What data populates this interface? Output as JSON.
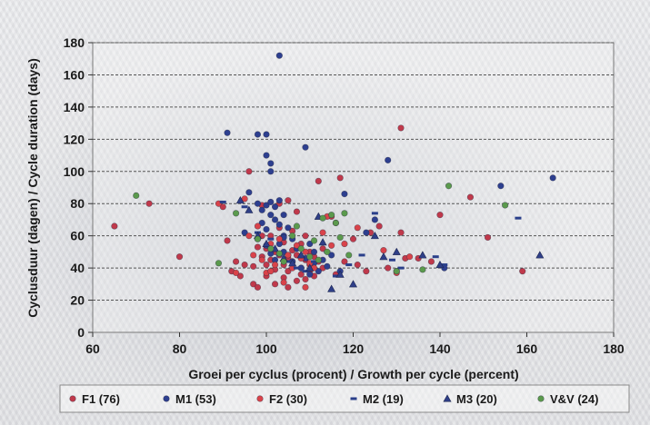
{
  "chart_data": {
    "type": "scatter",
    "xlabel": "Groei per cyclus (procent)  /  Growth per cycle (percent)",
    "ylabel": "Cyclusduur (dagen)  /  Cycle duration (days)",
    "xlim": [
      60,
      180
    ],
    "ylim": [
      0,
      180
    ],
    "xticks": [
      "60",
      "80",
      "100",
      "120",
      "140",
      "160",
      "180"
    ],
    "yticks": [
      "0",
      "20",
      "40",
      "60",
      "80",
      "100",
      "120",
      "140",
      "160",
      "180"
    ],
    "grid": "horizontal dashed",
    "legend_placement": "bottom",
    "series": [
      {
        "name": "F1 (76)",
        "marker": "circle",
        "color": "#c0394b",
        "points": [
          [
            65,
            66
          ],
          [
            73,
            80
          ],
          [
            80,
            47
          ],
          [
            90,
            78
          ],
          [
            91,
            57
          ],
          [
            92,
            38
          ],
          [
            93,
            44
          ],
          [
            94,
            35
          ],
          [
            95,
            42
          ],
          [
            96,
            100
          ],
          [
            97,
            30
          ],
          [
            97,
            41
          ],
          [
            98,
            53
          ],
          [
            98,
            28
          ],
          [
            99,
            47
          ],
          [
            99,
            60
          ],
          [
            99,
            79
          ],
          [
            100,
            35
          ],
          [
            100,
            42
          ],
          [
            100,
            52
          ],
          [
            101,
            45
          ],
          [
            101,
            60
          ],
          [
            102,
            30
          ],
          [
            102,
            50
          ],
          [
            102,
            39
          ],
          [
            103,
            48
          ],
          [
            103,
            65
          ],
          [
            103,
            80
          ],
          [
            104,
            34
          ],
          [
            104,
            42
          ],
          [
            104,
            56
          ],
          [
            105,
            38
          ],
          [
            105,
            46
          ],
          [
            105,
            28
          ],
          [
            106,
            51
          ],
          [
            106,
            44
          ],
          [
            106,
            63
          ],
          [
            107,
            32
          ],
          [
            107,
            48
          ],
          [
            107,
            75
          ],
          [
            108,
            40
          ],
          [
            108,
            55
          ],
          [
            108,
            36
          ],
          [
            109,
            45
          ],
          [
            109,
            33
          ],
          [
            109,
            60
          ],
          [
            110,
            50
          ],
          [
            110,
            38
          ],
          [
            110,
            42
          ],
          [
            111,
            47
          ],
          [
            111,
            35
          ],
          [
            112,
            44
          ],
          [
            112,
            94
          ],
          [
            113,
            52
          ],
          [
            113,
            40
          ],
          [
            115,
            72
          ],
          [
            116,
            36
          ],
          [
            117,
            96
          ],
          [
            118,
            44
          ],
          [
            120,
            58
          ],
          [
            121,
            42
          ],
          [
            123,
            38
          ],
          [
            124,
            62
          ],
          [
            126,
            66
          ],
          [
            128,
            40
          ],
          [
            130,
            38
          ],
          [
            131,
            127
          ],
          [
            131,
            62
          ],
          [
            132,
            46
          ],
          [
            135,
            46
          ],
          [
            138,
            44
          ],
          [
            140,
            73
          ],
          [
            147,
            84
          ],
          [
            151,
            59
          ],
          [
            159,
            38
          ],
          [
            105,
            82
          ]
        ]
      },
      {
        "name": "M1 (53)",
        "marker": "circle",
        "color": "#2d3f8f",
        "points": [
          [
            91,
            124
          ],
          [
            98,
            123
          ],
          [
            100,
            123
          ],
          [
            100,
            110
          ],
          [
            101,
            105
          ],
          [
            101,
            100
          ],
          [
            103,
            172
          ],
          [
            109,
            115
          ],
          [
            96,
            87
          ],
          [
            98,
            80
          ],
          [
            99,
            76
          ],
          [
            100,
            79
          ],
          [
            101,
            81
          ],
          [
            101,
            73
          ],
          [
            102,
            70
          ],
          [
            102,
            78
          ],
          [
            103,
            67
          ],
          [
            103,
            82
          ],
          [
            104,
            73
          ],
          [
            104,
            60
          ],
          [
            100,
            54
          ],
          [
            101,
            49
          ],
          [
            102,
            45
          ],
          [
            103,
            55
          ],
          [
            104,
            50
          ],
          [
            105,
            48
          ],
          [
            106,
            44
          ],
          [
            107,
            52
          ],
          [
            108,
            40
          ],
          [
            109,
            46
          ],
          [
            110,
            36
          ],
          [
            111,
            43
          ],
          [
            112,
            38
          ],
          [
            113,
            45
          ],
          [
            114,
            41
          ],
          [
            106,
            58
          ],
          [
            105,
            65
          ],
          [
            104,
            59
          ],
          [
            100,
            64
          ],
          [
            99,
            68
          ],
          [
            98,
            58
          ],
          [
            110,
            55
          ],
          [
            111,
            50
          ],
          [
            115,
            48
          ],
          [
            117,
            38
          ],
          [
            118,
            86
          ],
          [
            123,
            62
          ],
          [
            125,
            70
          ],
          [
            128,
            107
          ],
          [
            141,
            40
          ],
          [
            154,
            91
          ],
          [
            166,
            96
          ],
          [
            95,
            62
          ]
        ]
      },
      {
        "name": "F2 (30)",
        "marker": "circle",
        "color": "#d9434a",
        "points": [
          [
            89,
            80
          ],
          [
            93,
            37
          ],
          [
            95,
            83
          ],
          [
            96,
            60
          ],
          [
            97,
            48
          ],
          [
            98,
            66
          ],
          [
            99,
            45
          ],
          [
            100,
            37
          ],
          [
            101,
            55
          ],
          [
            102,
            42
          ],
          [
            103,
            58
          ],
          [
            104,
            31
          ],
          [
            105,
            48
          ],
          [
            106,
            40
          ],
          [
            107,
            54
          ],
          [
            108,
            46
          ],
          [
            109,
            50
          ],
          [
            110,
            43
          ],
          [
            111,
            40
          ],
          [
            113,
            62
          ],
          [
            114,
            72
          ],
          [
            115,
            54
          ],
          [
            116,
            68
          ],
          [
            118,
            55
          ],
          [
            121,
            65
          ],
          [
            127,
            51
          ],
          [
            130,
            37
          ],
          [
            133,
            47
          ],
          [
            109,
            28
          ],
          [
            101,
            38
          ]
        ]
      },
      {
        "name": "M2 (19)",
        "marker": "dash",
        "color": "#2a3f8a",
        "points": [
          [
            90,
            81
          ],
          [
            95,
            78
          ],
          [
            98,
            62
          ],
          [
            101,
            58
          ],
          [
            103,
            48
          ],
          [
            105,
            44
          ],
          [
            107,
            40
          ],
          [
            109,
            38
          ],
          [
            111,
            44
          ],
          [
            114,
            50
          ],
          [
            116,
            35
          ],
          [
            119,
            42
          ],
          [
            122,
            48
          ],
          [
            125,
            74
          ],
          [
            129,
            45
          ],
          [
            131,
            40
          ],
          [
            139,
            47
          ],
          [
            141,
            42
          ],
          [
            158,
            71
          ]
        ]
      },
      {
        "name": "M3 (20)",
        "marker": "triangle",
        "color": "#2f3f88",
        "points": [
          [
            94,
            82
          ],
          [
            96,
            76
          ],
          [
            98,
            60
          ],
          [
            100,
            55
          ],
          [
            102,
            52
          ],
          [
            104,
            46
          ],
          [
            106,
            43
          ],
          [
            108,
            48
          ],
          [
            110,
            40
          ],
          [
            112,
            72
          ],
          [
            113,
            56
          ],
          [
            115,
            27
          ],
          [
            117,
            36
          ],
          [
            120,
            30
          ],
          [
            125,
            60
          ],
          [
            127,
            47
          ],
          [
            130,
            50
          ],
          [
            136,
            48
          ],
          [
            140,
            42
          ],
          [
            163,
            48
          ]
        ]
      },
      {
        "name": "V&V (24)",
        "marker": "circle",
        "color": "#5b9a4d",
        "points": [
          [
            70,
            85
          ],
          [
            89,
            43
          ],
          [
            93,
            74
          ],
          [
            98,
            58
          ],
          [
            101,
            52
          ],
          [
            103,
            49
          ],
          [
            104,
            44
          ],
          [
            106,
            60
          ],
          [
            107,
            66
          ],
          [
            108,
            52
          ],
          [
            110,
            47
          ],
          [
            111,
            57
          ],
          [
            112,
            45
          ],
          [
            113,
            71
          ],
          [
            114,
            50
          ],
          [
            115,
            73
          ],
          [
            116,
            68
          ],
          [
            117,
            59
          ],
          [
            118,
            74
          ],
          [
            119,
            48
          ],
          [
            130,
            38
          ],
          [
            136,
            39
          ],
          [
            142,
            91
          ],
          [
            155,
            79
          ]
        ]
      }
    ]
  }
}
